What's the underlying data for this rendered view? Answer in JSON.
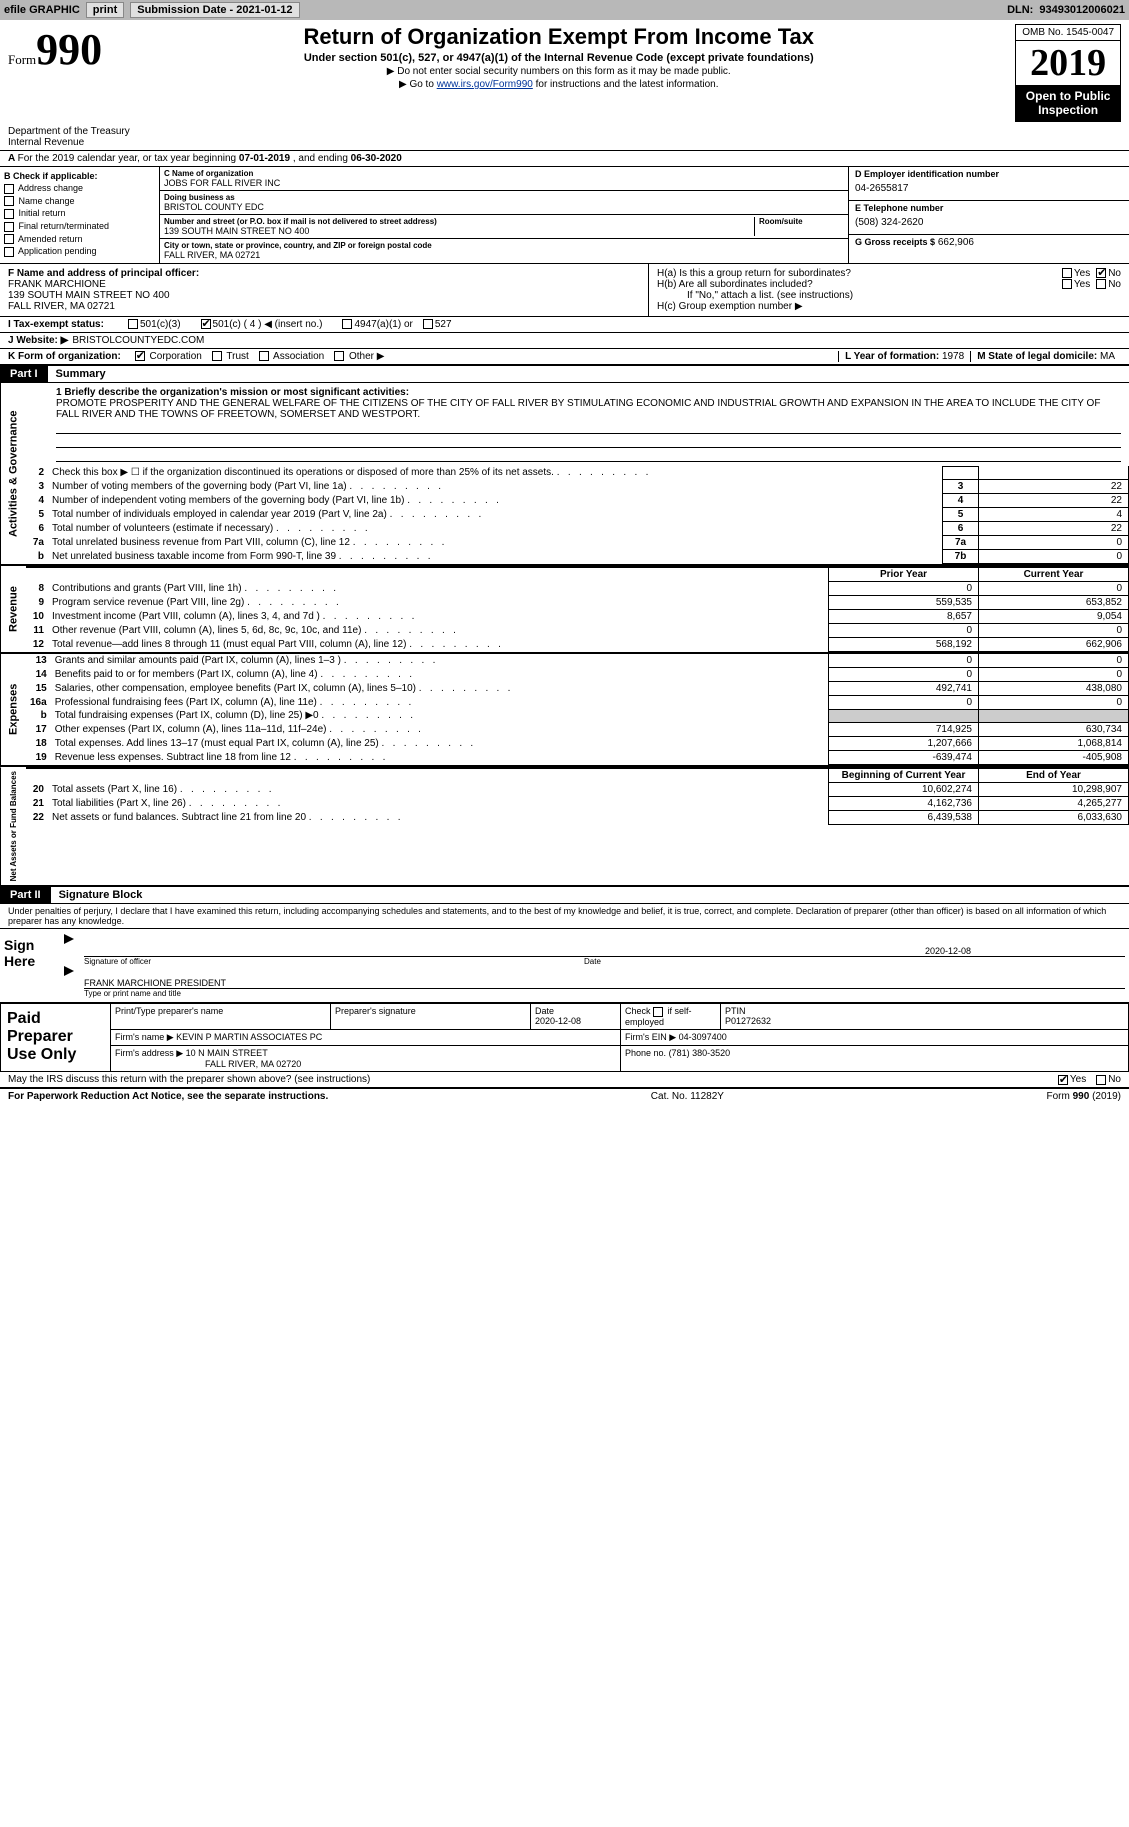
{
  "topbar": {
    "efile": "efile GRAPHIC",
    "print": "print",
    "submission": "Submission Date - 2021-01-12",
    "dln_label": "DLN:",
    "dln": "93493012006021"
  },
  "header": {
    "form_word": "Form",
    "form_num": "990",
    "title": "Return of Organization Exempt From Income Tax",
    "sub1": "Under section 501(c), 527, or 4947(a)(1) of the Internal Revenue Code (except private foundations)",
    "sub2": "Do not enter social security numbers on this form as it may be made public.",
    "sub3_pre": "Go to ",
    "sub3_link": "www.irs.gov/Form990",
    "sub3_post": " for instructions and the latest information.",
    "omb": "OMB No. 1545-0047",
    "year": "2019",
    "otp1": "Open to Public",
    "otp2": "Inspection",
    "dept1": "Department of the Treasury",
    "dept2": "Internal Revenue"
  },
  "period": {
    "text_a": "For the 2019 calendar year, or tax year beginning ",
    "begin": "07-01-2019",
    "text_b": " , and ending ",
    "end": "06-30-2020"
  },
  "boxB": {
    "header": "B Check if applicable:",
    "items": [
      "Address change",
      "Name change",
      "Initial return",
      "Final return/terminated",
      "Amended return",
      "Application pending"
    ]
  },
  "boxC": {
    "name_label": "C Name of organization",
    "name": "JOBS FOR FALL RIVER INC",
    "dba_label": "Doing business as",
    "dba": "BRISTOL COUNTY EDC",
    "addr_label": "Number and street (or P.O. box if mail is not delivered to street address)",
    "room_label": "Room/suite",
    "addr": "139 SOUTH MAIN STREET NO 400",
    "city_label": "City or town, state or province, country, and ZIP or foreign postal code",
    "city": "FALL RIVER, MA  02721"
  },
  "boxD": {
    "label": "D Employer identification number",
    "value": "04-2655817"
  },
  "boxE": {
    "label": "E Telephone number",
    "value": "(508) 324-2620"
  },
  "boxG": {
    "label": "G Gross receipts $",
    "value": "662,906"
  },
  "boxF": {
    "label": "F Name and address of principal officer:",
    "name": "FRANK MARCHIONE",
    "addr1": "139 SOUTH MAIN STREET NO 400",
    "addr2": "FALL RIVER, MA  02721"
  },
  "boxH": {
    "a": "H(a)  Is this a group return for subordinates?",
    "b": "H(b)  Are all subordinates included?",
    "note": "If \"No,\" attach a list. (see instructions)",
    "c": "H(c)  Group exemption number ▶",
    "yes": "Yes",
    "no": "No"
  },
  "rowI": {
    "label": "I  Tax-exempt status:",
    "opt1": "501(c)(3)",
    "opt2": "501(c) ( 4 ) ◀ (insert no.)",
    "opt3": "4947(a)(1) or",
    "opt4": "527"
  },
  "rowJ": {
    "label": "J  Website: ▶",
    "value": "BRISTOLCOUNTYEDC.COM"
  },
  "rowK": {
    "label": "K Form of organization:",
    "opts": [
      "Corporation",
      "Trust",
      "Association",
      "Other ▶"
    ]
  },
  "rowL": {
    "label": "L Year of formation:",
    "value": "1978"
  },
  "rowM": {
    "label": "M State of legal domicile:",
    "value": "MA"
  },
  "part1": {
    "tab": "Part I",
    "title": "Summary"
  },
  "mission": {
    "line1_label": "1  Briefly describe the organization's mission or most significant activities:",
    "text": "PROMOTE PROSPERITY AND THE GENERAL WELFARE OF THE CITIZENS OF THE CITY OF FALL RIVER BY STIMULATING ECONOMIC AND INDUSTRIAL GROWTH AND EXPANSION IN THE AREA TO INCLUDE THE CITY OF FALL RIVER AND THE TOWNS OF FREETOWN, SOMERSET AND WESTPORT."
  },
  "governance_rows": [
    {
      "n": "2",
      "desc": "Check this box ▶ ☐  if the organization discontinued its operations or disposed of more than 25% of its net assets.",
      "box": "",
      "val": ""
    },
    {
      "n": "3",
      "desc": "Number of voting members of the governing body (Part VI, line 1a)",
      "box": "3",
      "val": "22"
    },
    {
      "n": "4",
      "desc": "Number of independent voting members of the governing body (Part VI, line 1b)",
      "box": "4",
      "val": "22"
    },
    {
      "n": "5",
      "desc": "Total number of individuals employed in calendar year 2019 (Part V, line 2a)",
      "box": "5",
      "val": "4"
    },
    {
      "n": "6",
      "desc": "Total number of volunteers (estimate if necessary)",
      "box": "6",
      "val": "22"
    },
    {
      "n": "7a",
      "desc": "Total unrelated business revenue from Part VIII, column (C), line 12",
      "box": "7a",
      "val": "0"
    },
    {
      "n": "b",
      "desc": "Net unrelated business taxable income from Form 990-T, line 39",
      "box": "7b",
      "val": "0"
    }
  ],
  "col_headers": {
    "prior": "Prior Year",
    "current": "Current Year",
    "boy": "Beginning of Current Year",
    "eoy": "End of Year"
  },
  "revenue_rows": [
    {
      "n": "8",
      "desc": "Contributions and grants (Part VIII, line 1h)",
      "py": "0",
      "cy": "0"
    },
    {
      "n": "9",
      "desc": "Program service revenue (Part VIII, line 2g)",
      "py": "559,535",
      "cy": "653,852"
    },
    {
      "n": "10",
      "desc": "Investment income (Part VIII, column (A), lines 3, 4, and 7d )",
      "py": "8,657",
      "cy": "9,054"
    },
    {
      "n": "11",
      "desc": "Other revenue (Part VIII, column (A), lines 5, 6d, 8c, 9c, 10c, and 11e)",
      "py": "0",
      "cy": "0"
    },
    {
      "n": "12",
      "desc": "Total revenue—add lines 8 through 11 (must equal Part VIII, column (A), line 12)",
      "py": "568,192",
      "cy": "662,906"
    }
  ],
  "expense_rows": [
    {
      "n": "13",
      "desc": "Grants and similar amounts paid (Part IX, column (A), lines 1–3 )",
      "py": "0",
      "cy": "0"
    },
    {
      "n": "14",
      "desc": "Benefits paid to or for members (Part IX, column (A), line 4)",
      "py": "0",
      "cy": "0"
    },
    {
      "n": "15",
      "desc": "Salaries, other compensation, employee benefits (Part IX, column (A), lines 5–10)",
      "py": "492,741",
      "cy": "438,080"
    },
    {
      "n": "16a",
      "desc": "Professional fundraising fees (Part IX, column (A), line 11e)",
      "py": "0",
      "cy": "0"
    },
    {
      "n": "b",
      "desc": "Total fundraising expenses (Part IX, column (D), line 25) ▶0",
      "py": "",
      "cy": "",
      "shade": true
    },
    {
      "n": "17",
      "desc": "Other expenses (Part IX, column (A), lines 11a–11d, 11f–24e)",
      "py": "714,925",
      "cy": "630,734"
    },
    {
      "n": "18",
      "desc": "Total expenses. Add lines 13–17 (must equal Part IX, column (A), line 25)",
      "py": "1,207,666",
      "cy": "1,068,814"
    },
    {
      "n": "19",
      "desc": "Revenue less expenses. Subtract line 18 from line 12",
      "py": "-639,474",
      "cy": "-405,908"
    }
  ],
  "balance_rows": [
    {
      "n": "20",
      "desc": "Total assets (Part X, line 16)",
      "py": "10,602,274",
      "cy": "10,298,907"
    },
    {
      "n": "21",
      "desc": "Total liabilities (Part X, line 26)",
      "py": "4,162,736",
      "cy": "4,265,277"
    },
    {
      "n": "22",
      "desc": "Net assets or fund balances. Subtract line 21 from line 20",
      "py": "6,439,538",
      "cy": "6,033,630"
    }
  ],
  "vlabels": {
    "gov": "Activities & Governance",
    "rev": "Revenue",
    "exp": "Expenses",
    "bal": "Net Assets or Fund Balances"
  },
  "part2": {
    "tab": "Part II",
    "title": "Signature Block"
  },
  "sig_decl": "Under penalties of perjury, I declare that I have examined this return, including accompanying schedules and statements, and to the best of my knowledge and belief, it is true, correct, and complete. Declaration of preparer (other than officer) is based on all information of which preparer has any knowledge.",
  "sign_here": {
    "label": "Sign Here",
    "sig_of_officer": "Signature of officer",
    "date": "2020-12-08",
    "date_label": "Date",
    "name": "FRANK MARCHIONE PRESIDENT",
    "name_label": "Type or print name and title"
  },
  "preparer": {
    "label": "Paid Preparer Use Only",
    "h1": "Print/Type preparer's name",
    "h2": "Preparer's signature",
    "h3_label": "Date",
    "h3": "2020-12-08",
    "h4_label": "Check",
    "h4_sub": "if self-employed",
    "h5_label": "PTIN",
    "h5": "P01272632",
    "firm_name_label": "Firm's name  ▶",
    "firm_name": "KEVIN P MARTIN ASSOCIATES PC",
    "firm_ein_label": "Firm's EIN ▶",
    "firm_ein": "04-3097400",
    "firm_addr_label": "Firm's address ▶",
    "firm_addr1": "10 N MAIN STREET",
    "firm_addr2": "FALL RIVER, MA  02720",
    "phone_label": "Phone no.",
    "phone": "(781) 380-3520"
  },
  "discuss": {
    "text": "May the IRS discuss this return with the preparer shown above? (see instructions)",
    "yes": "Yes",
    "no": "No"
  },
  "footer": {
    "left": "For Paperwork Reduction Act Notice, see the separate instructions.",
    "mid": "Cat. No. 11282Y",
    "right": "Form 990 (2019)"
  }
}
